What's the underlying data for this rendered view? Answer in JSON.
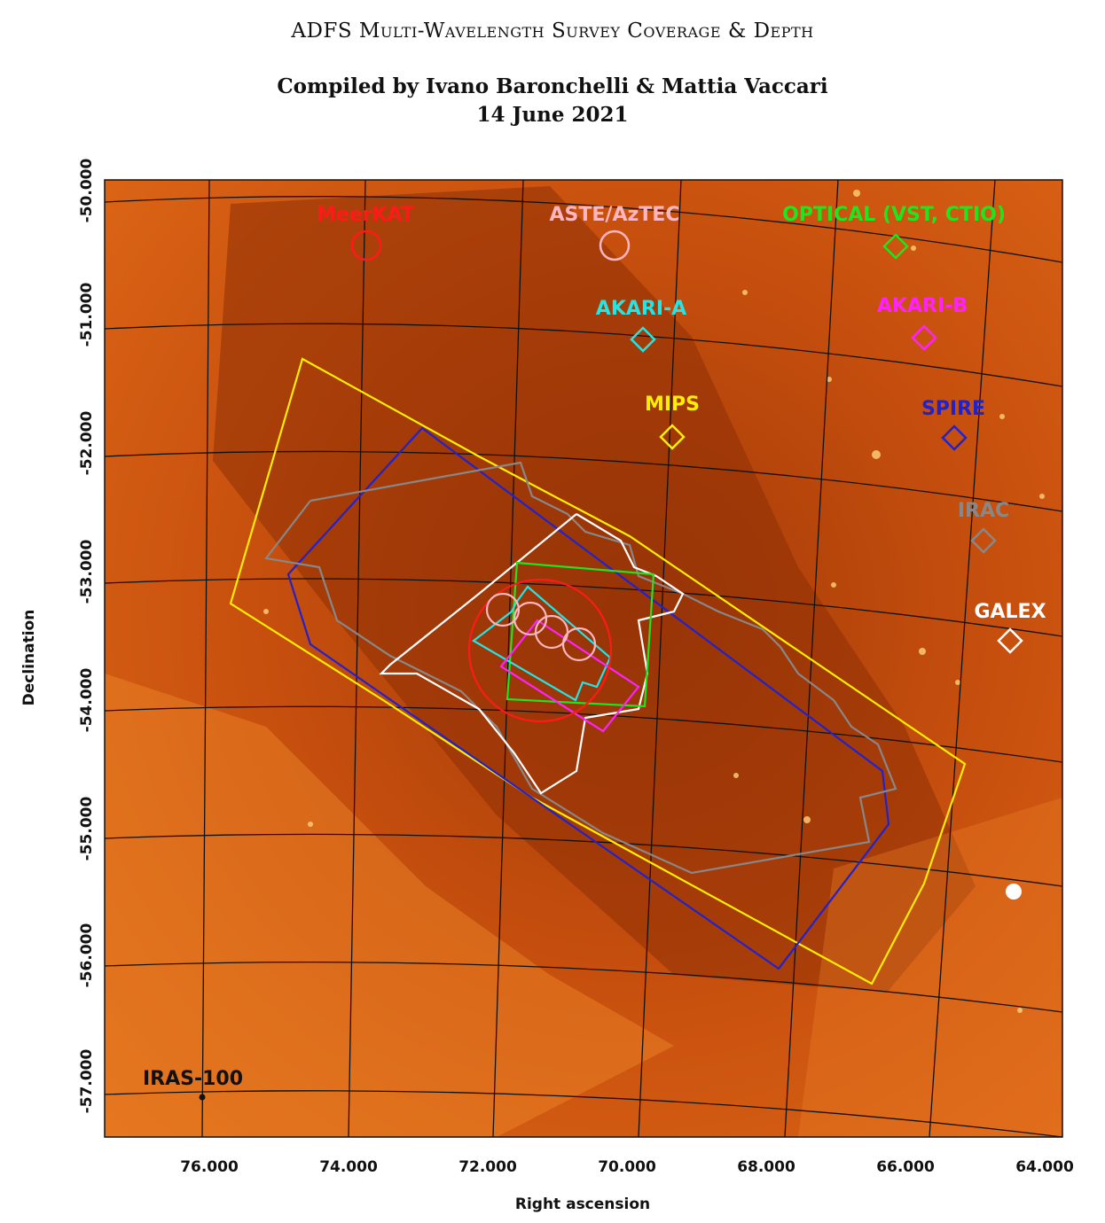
{
  "title": "ADFS Multi-Wavelength Survey Coverage & Depth",
  "author_line": "Compiled by Ivano Baronchelli & Mattia Vaccari",
  "date_line": "14 June 2021",
  "axes": {
    "xlabel": "Right ascension",
    "ylabel": "Declination",
    "x_ticks": [
      "76.000",
      "74.000",
      "72.000",
      "70.000",
      "68.000",
      "66.000",
      "64.000"
    ],
    "y_ticks": [
      "-50.000",
      "-51.000",
      "-52.000",
      "-53.000",
      "-54.000",
      "-55.000",
      "-56.000",
      "-57.000"
    ]
  },
  "background_label": "IRAS-100",
  "colors": {
    "meerkat": "#ff1a1a",
    "aste": "#ffb6c1",
    "optical": "#1ee61e",
    "akari_a": "#22e6e6",
    "akari_b": "#ff22ff",
    "mips": "#ffee00",
    "spire": "#2222cc",
    "irac": "#888888",
    "galex": "#ffffff",
    "background": "#d85a10"
  },
  "legend": [
    {
      "key": "meerkat",
      "label": "MeerKAT",
      "marker": "circle"
    },
    {
      "key": "aste",
      "label": "ASTE/AzTEC",
      "marker": "circle"
    },
    {
      "key": "optical",
      "label": "OPTICAL (VST, CTIO)",
      "marker": "diamond"
    },
    {
      "key": "akari_a",
      "label": "AKARI-A",
      "marker": "diamond"
    },
    {
      "key": "akari_b",
      "label": "AKARI-B",
      "marker": "diamond"
    },
    {
      "key": "mips",
      "label": "MIPS",
      "marker": "diamond"
    },
    {
      "key": "spire",
      "label": "SPIRE",
      "marker": "diamond"
    },
    {
      "key": "irac",
      "label": "IRAC",
      "marker": "diamond"
    },
    {
      "key": "galex",
      "label": "GALEX",
      "marker": "diamond"
    }
  ]
}
